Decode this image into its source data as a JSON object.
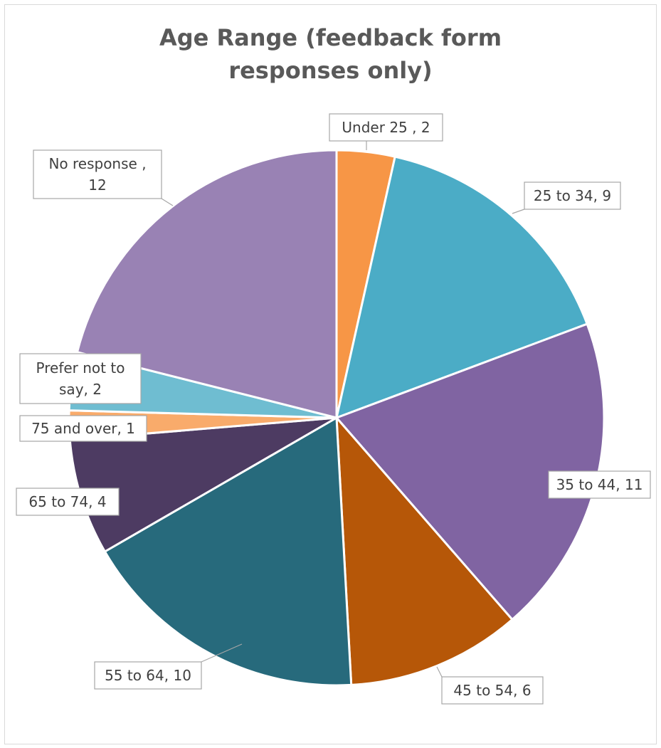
{
  "chart_data": {
    "type": "pie",
    "title_lines": [
      "Age Range (feedback form",
      "responses only)"
    ],
    "slices": [
      {
        "category": "Under 25 ",
        "value": 2,
        "color": "#F79646",
        "label_lines": [
          "Under 25 , 2"
        ]
      },
      {
        "category": "25 to 34",
        "value": 9,
        "color": "#4BACC6",
        "label_lines": [
          "25 to 34, 9"
        ]
      },
      {
        "category": "35 to 44",
        "value": 11,
        "color": "#8064A2",
        "label_lines": [
          "35 to 44, 11"
        ]
      },
      {
        "category": "45 to 54",
        "value": 6,
        "color": "#B65708",
        "label_lines": [
          "45 to 54, 6"
        ]
      },
      {
        "category": "55 to 64",
        "value": 10,
        "color": "#276A7C",
        "label_lines": [
          "55 to 64, 10"
        ]
      },
      {
        "category": "65 to 74",
        "value": 4,
        "color": "#4D3B62",
        "label_lines": [
          "65 to 74, 4"
        ]
      },
      {
        "category": "75 and over",
        "value": 1,
        "color": "#F9AB6B",
        "label_lines": [
          "75 and over, 1"
        ]
      },
      {
        "category": "Prefer not to say",
        "value": 2,
        "color": "#6FBDD1",
        "label_lines": [
          "Prefer not to",
          "say, 2"
        ]
      },
      {
        "category": "No response ",
        "value": 12,
        "color": "#9982B4",
        "label_lines": [
          "No response ,",
          "12"
        ]
      }
    ],
    "legend": "none",
    "start_angle_deg": 0,
    "direction": "clockwise"
  }
}
